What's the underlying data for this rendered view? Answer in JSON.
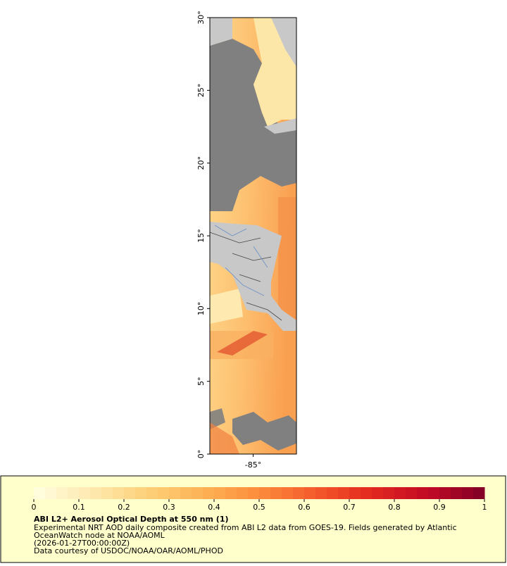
{
  "map": {
    "xlim": [
      -88,
      -82
    ],
    "xticks": [
      {
        "value": -85,
        "label": "-85°"
      }
    ],
    "ylim": [
      0,
      30
    ],
    "yticks": [
      {
        "value": 0,
        "label": "0°"
      },
      {
        "value": 5,
        "label": "5°"
      },
      {
        "value": 10,
        "label": "10°"
      },
      {
        "value": 15,
        "label": "15°"
      },
      {
        "value": 20,
        "label": "20°"
      },
      {
        "value": 25,
        "label": "25°"
      },
      {
        "value": 30,
        "label": "30°"
      }
    ]
  },
  "legend": {
    "colorbar": {
      "lim": [
        0,
        1
      ],
      "ticks": [
        0,
        0.1,
        0.2,
        0.3,
        0.4,
        0.5,
        0.6,
        0.7,
        0.8,
        0.9,
        1
      ],
      "colors": [
        "#ffffe0",
        "#fee9b0",
        "#fed17a",
        "#fdb255",
        "#fc8c3c",
        "#f45a2b",
        "#e2281f",
        "#c10a26",
        "#800026"
      ]
    },
    "title": "ABI L2+ Aerosol Optical Depth at 550 nm (1)",
    "lines": [
      "Experimental NRT AOD daily composite created from ABI L2 data from GOES-19. Fields generated by Atlantic",
      "OceanWatch node at NOAA/AOML",
      "(2026-01-27T00:00:00Z)",
      "Data courtesy of USDOC/NOAA/OAR/AOML/PHOD"
    ]
  }
}
